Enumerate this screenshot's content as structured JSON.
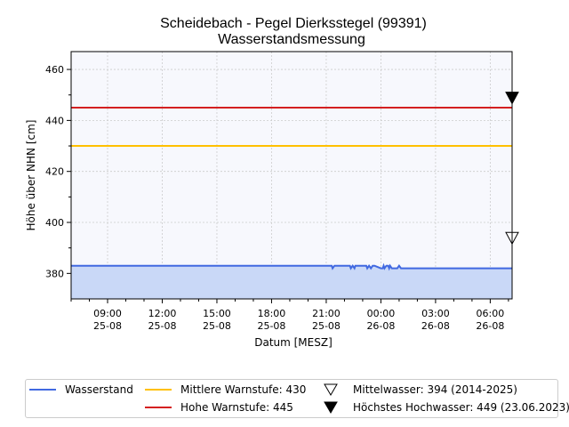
{
  "chart_data": {
    "type": "line",
    "title": "Scheidebach - Pegel Dierksstegel (99391)",
    "subtitle": "Wasserstandsmessung",
    "xlabel": "Datum [MESZ]",
    "ylabel": "Höhe über NHN [cm]",
    "ylim": [
      370,
      467
    ],
    "yticks": [
      380,
      400,
      420,
      440,
      460
    ],
    "xlim": [
      7.0,
      31.2
    ],
    "xticks": [
      {
        "x": 9,
        "time": "09:00",
        "date": "25-08"
      },
      {
        "x": 12,
        "time": "12:00",
        "date": "25-08"
      },
      {
        "x": 15,
        "time": "15:00",
        "date": "25-08"
      },
      {
        "x": 18,
        "time": "18:00",
        "date": "25-08"
      },
      {
        "x": 21,
        "time": "21:00",
        "date": "25-08"
      },
      {
        "x": 24,
        "time": "00:00",
        "date": "26-08"
      },
      {
        "x": 27,
        "time": "03:00",
        "date": "26-08"
      },
      {
        "x": 30,
        "time": "06:00",
        "date": "26-08"
      }
    ],
    "grid": true,
    "legend_position": "bottom",
    "series": [
      {
        "name": "Wasserstand",
        "color": "#4169e1",
        "fill": "#c9d8f7",
        "x": [
          7.0,
          21.3,
          21.35,
          21.45,
          22.3,
          22.35,
          22.45,
          22.55,
          22.6,
          22.7,
          23.2,
          23.25,
          23.35,
          23.45,
          23.55,
          23.65,
          24.0,
          24.1,
          24.15,
          24.2,
          24.3,
          24.4,
          24.45,
          24.5,
          24.6,
          24.9,
          25.0,
          25.1,
          25.2,
          31.2
        ],
        "values": [
          383,
          383,
          382,
          383,
          383,
          382,
          383,
          382,
          383,
          383,
          383,
          382,
          383,
          382,
          383,
          383,
          382,
          382,
          383,
          382,
          383,
          383,
          382,
          383,
          382,
          382,
          383,
          382,
          382,
          382
        ]
      }
    ],
    "thresholds": [
      {
        "name": "Mittlere Warnstufe: 430",
        "value": 430,
        "color": "#ffc000"
      },
      {
        "name": "Hohe Warnstufe: 445",
        "value": 445,
        "color": "#d42020"
      }
    ],
    "markers": [
      {
        "name": "Mittelwasser: 394 (2014-2025)",
        "value": 394,
        "symbol": "triangle-down-open"
      },
      {
        "name": "Höchstes Hochwasser: 449 (23.06.2023)",
        "value": 449,
        "symbol": "triangle-down-filled"
      }
    ],
    "colors": {
      "plot_background": "#f7f8fd",
      "grid": "#cccccc"
    }
  }
}
